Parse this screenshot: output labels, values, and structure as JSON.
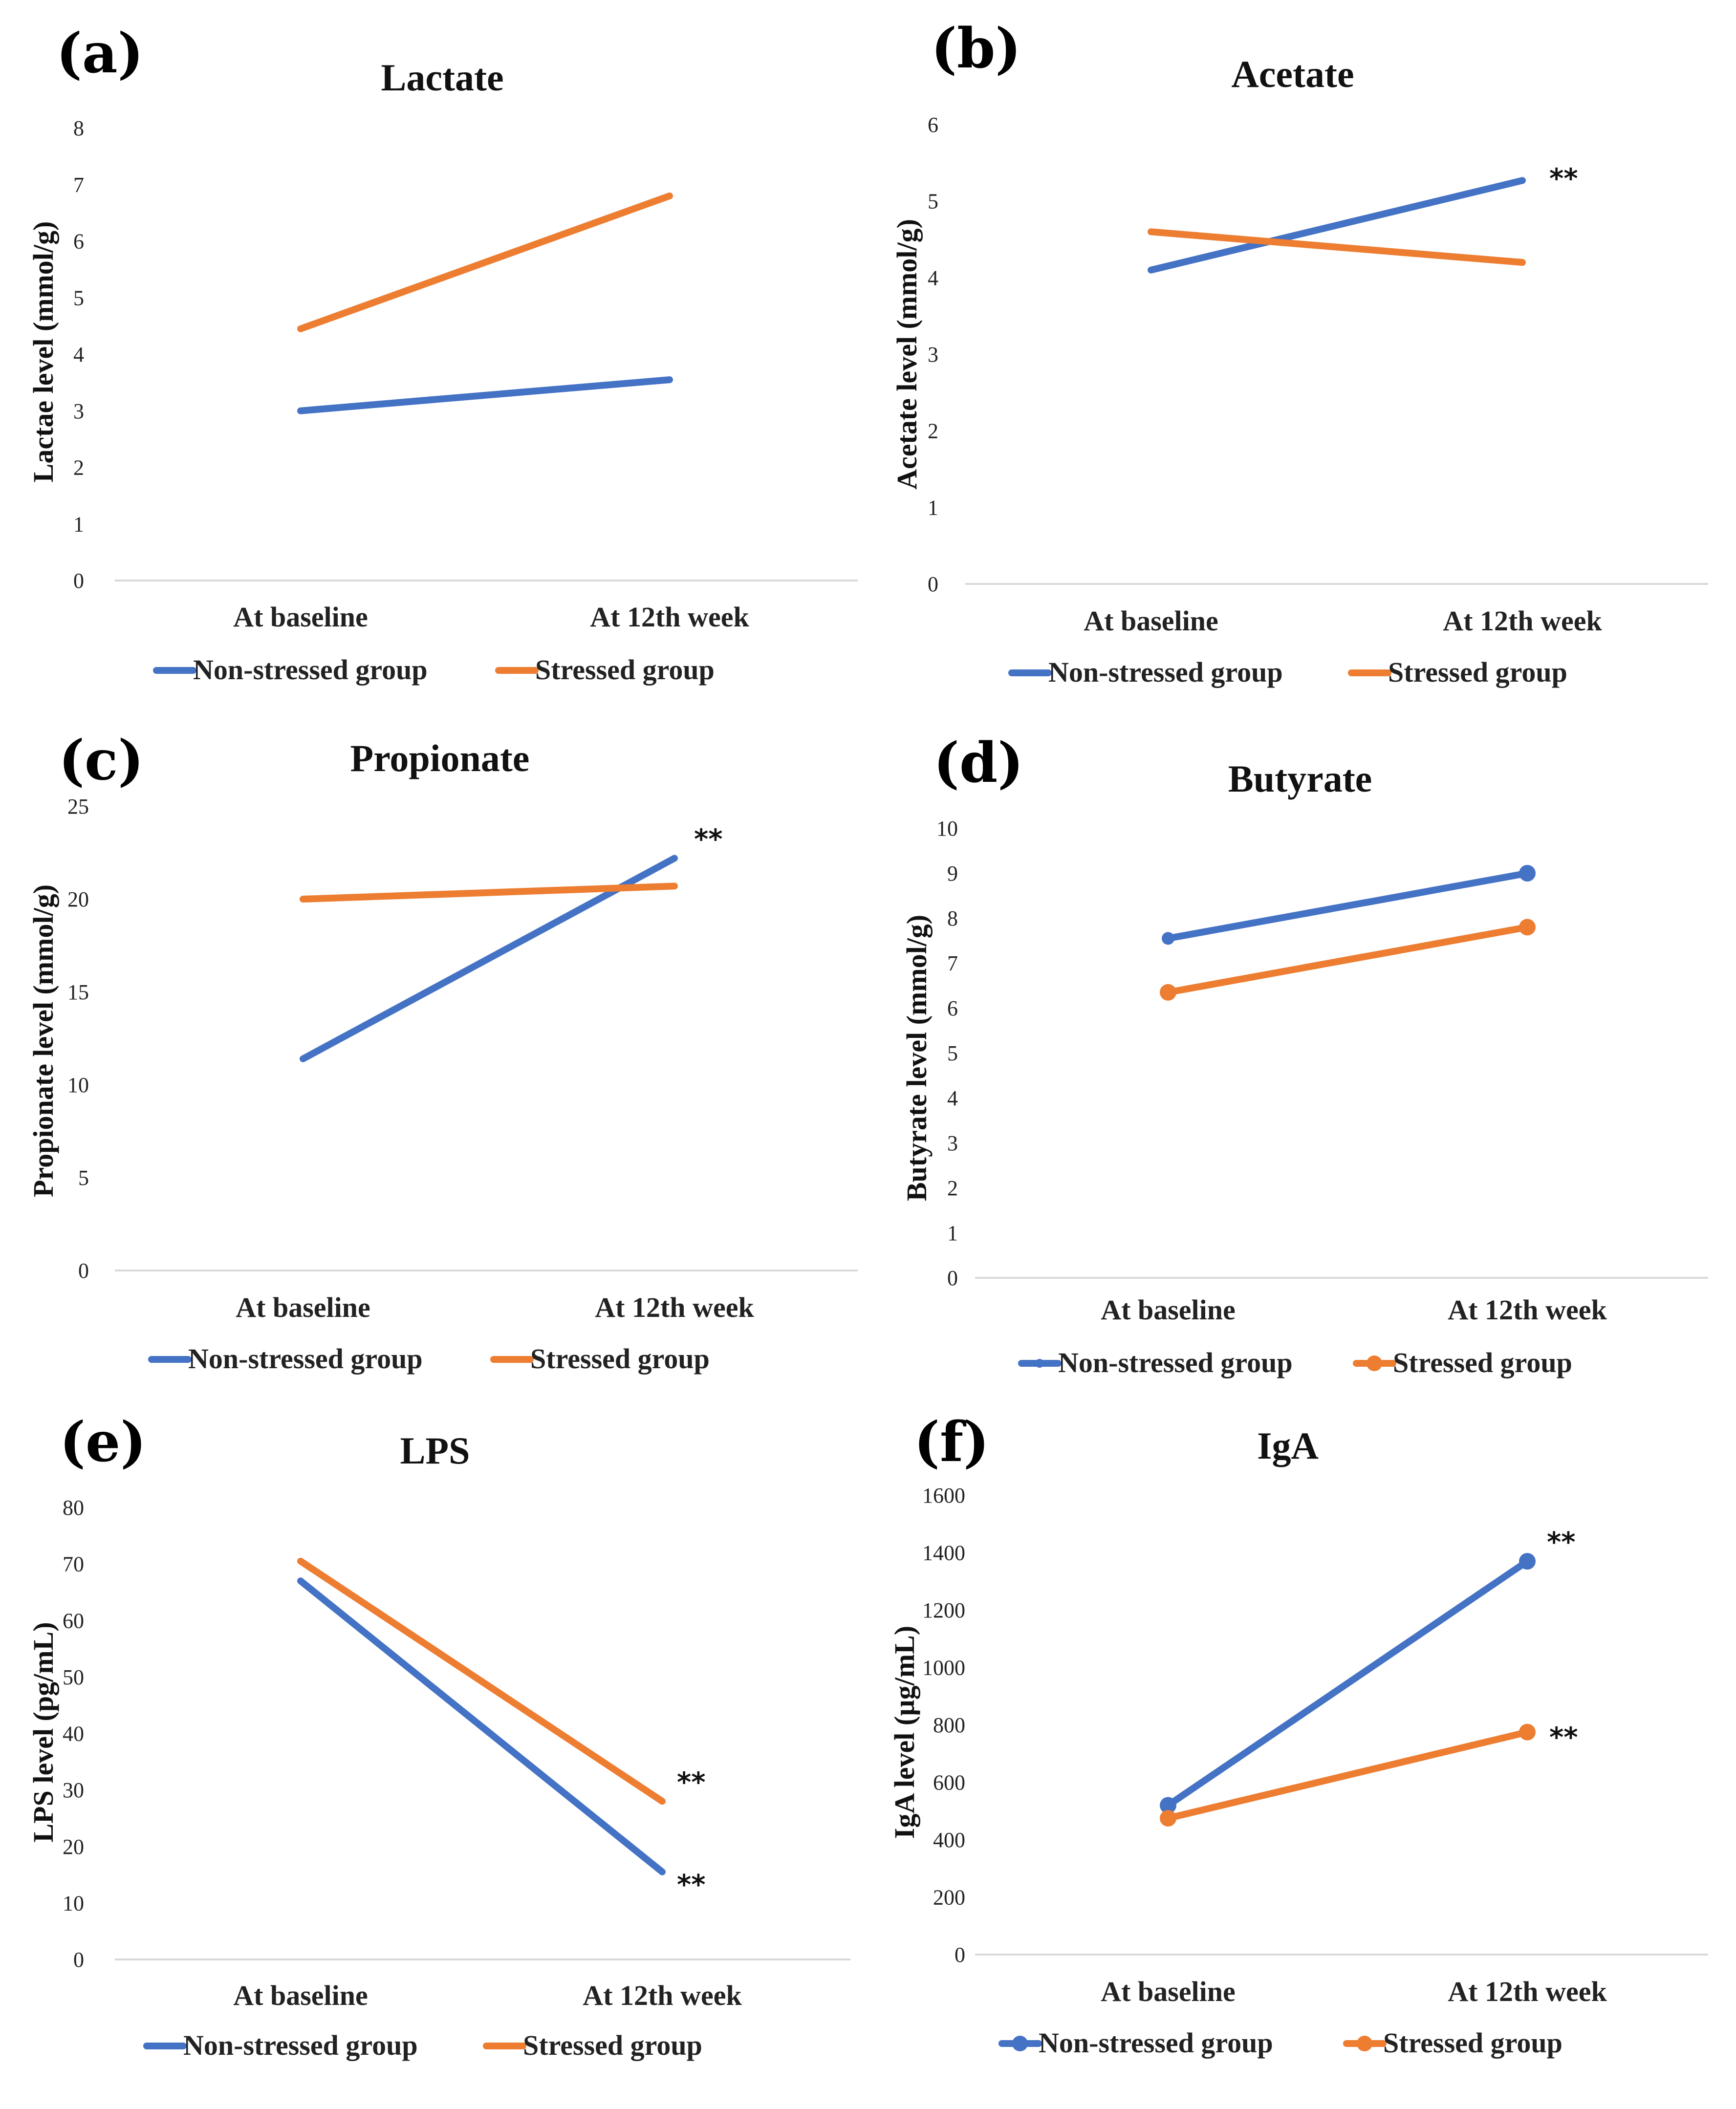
{
  "colors": {
    "non_stressed": "#4472C4",
    "stressed": "#ED7D31",
    "axis": "#D9D9D9"
  },
  "chart_data": [
    {
      "type": "line",
      "panel": "(a)",
      "title": "Lactate",
      "ylabel": "Lactae level (mmol/g)",
      "xlabel": "",
      "categories": [
        "At baseline",
        "At 12th week"
      ],
      "ylim": [
        0,
        8
      ],
      "yticks": [
        0,
        1,
        2,
        3,
        4,
        5,
        6,
        7,
        8
      ],
      "markers": false,
      "series": [
        {
          "name": "Non-stressed group",
          "values": [
            3.0,
            3.55
          ],
          "annotations": [
            "",
            ""
          ]
        },
        {
          "name": "Stressed group",
          "values": [
            4.45,
            6.8
          ],
          "annotations": [
            "",
            ""
          ]
        }
      ]
    },
    {
      "type": "line",
      "panel": "(b)",
      "title": "Acetate",
      "ylabel": "Acetate level (mmol/g)",
      "xlabel": "",
      "categories": [
        "At baseline",
        "At 12th week"
      ],
      "ylim": [
        0,
        6
      ],
      "yticks": [
        0,
        1,
        2,
        3,
        4,
        5,
        6
      ],
      "markers": false,
      "series": [
        {
          "name": "Non-stressed group",
          "values": [
            4.1,
            5.27
          ],
          "annotations": [
            "",
            "**"
          ]
        },
        {
          "name": "Stressed group",
          "values": [
            4.6,
            4.2
          ],
          "annotations": [
            "",
            ""
          ]
        }
      ]
    },
    {
      "type": "line",
      "panel": "(c)",
      "title": "Propionate",
      "ylabel": "Propionate level (mmol/g)",
      "xlabel": "",
      "categories": [
        "At baseline",
        "At 12th week"
      ],
      "ylim": [
        0,
        25
      ],
      "yticks": [
        0,
        5,
        10,
        15,
        20,
        25
      ],
      "markers": false,
      "series": [
        {
          "name": "Non-stressed group",
          "values": [
            11.4,
            22.2
          ],
          "annotations": [
            "",
            "**"
          ]
        },
        {
          "name": "Stressed group",
          "values": [
            20.0,
            20.7
          ],
          "annotations": [
            "",
            ""
          ]
        }
      ]
    },
    {
      "type": "line",
      "panel": "(d)",
      "title": "Butyrate",
      "ylabel": "Butyrate level (mmol/g)",
      "xlabel": "",
      "categories": [
        "At baseline",
        "At 12th week"
      ],
      "ylim": [
        0,
        10
      ],
      "yticks": [
        0,
        1,
        2,
        3,
        4,
        5,
        6,
        7,
        8,
        9,
        10
      ],
      "markers": true,
      "series": [
        {
          "name": "Non-stressed group",
          "values": [
            7.55,
            9.0
          ],
          "annotations": [
            "",
            ""
          ]
        },
        {
          "name": "Stressed group",
          "values": [
            6.35,
            7.8
          ],
          "annotations": [
            "",
            ""
          ]
        }
      ]
    },
    {
      "type": "line",
      "panel": "(e)",
      "title": "LPS",
      "ylabel": "LPS level (pg/mL)",
      "xlabel": "",
      "categories": [
        "At baseline",
        "At 12th week"
      ],
      "ylim": [
        0,
        80
      ],
      "yticks": [
        0,
        10,
        20,
        30,
        40,
        50,
        60,
        70,
        80
      ],
      "markers": false,
      "series": [
        {
          "name": "Non-stressed group",
          "values": [
            67.0,
            15.5
          ],
          "annotations": [
            "",
            "**"
          ]
        },
        {
          "name": "Stressed group",
          "values": [
            70.5,
            28.0
          ],
          "annotations": [
            "",
            "**"
          ]
        }
      ]
    },
    {
      "type": "line",
      "panel": "(f)",
      "title": "IgA",
      "ylabel": "IgA level (µg/mL)",
      "xlabel": "",
      "categories": [
        "At baseline",
        "At 12th week"
      ],
      "ylim": [
        0,
        1600
      ],
      "yticks": [
        0,
        200,
        400,
        600,
        800,
        1000,
        1200,
        1400,
        1600
      ],
      "markers": true,
      "series": [
        {
          "name": "Non-stressed group",
          "values": [
            520,
            1370
          ],
          "annotations": [
            "",
            "**"
          ]
        },
        {
          "name": "Stressed group",
          "values": [
            475,
            775
          ],
          "annotations": [
            "",
            "**"
          ]
        }
      ]
    }
  ]
}
